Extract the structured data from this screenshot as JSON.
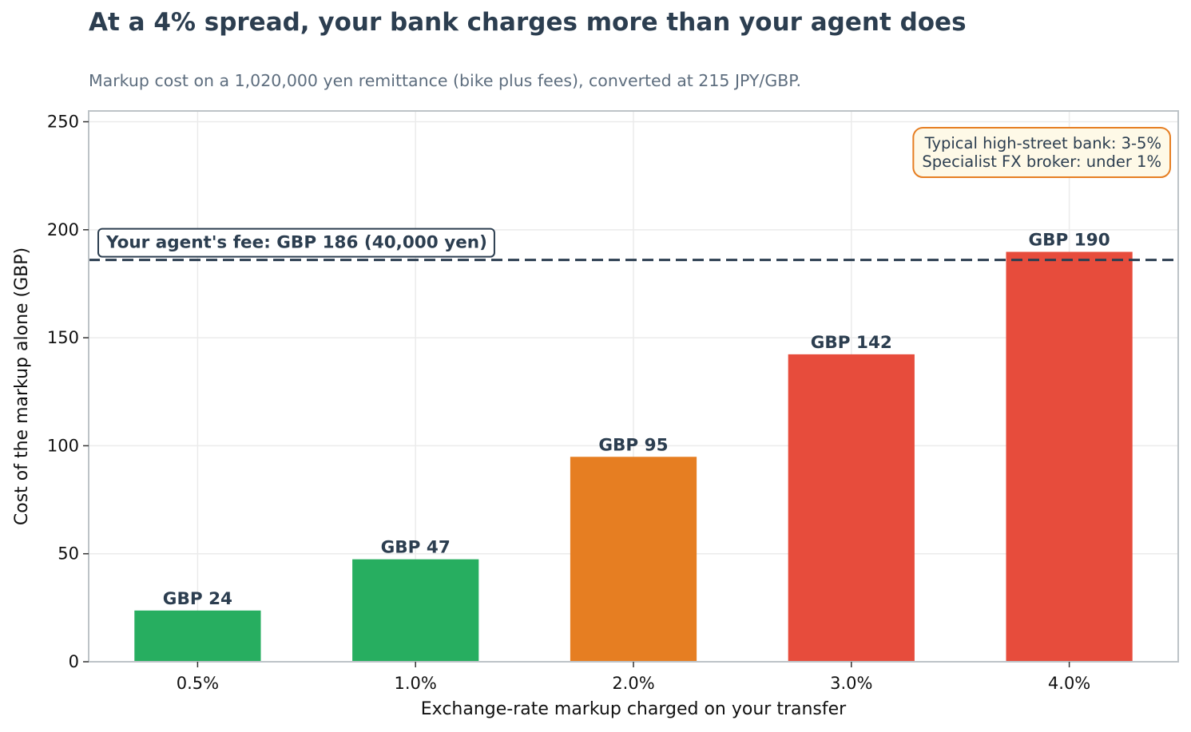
{
  "title": "At a 4% spread, your bank charges more than your agent does",
  "subtitle": "Markup cost on a 1,020,000 yen remittance (bike plus fees), converted at 215 JPY/GBP.",
  "chart_data": {
    "type": "bar",
    "categories": [
      "0.5%",
      "1.0%",
      "2.0%",
      "3.0%",
      "4.0%"
    ],
    "values": [
      23.72,
      47.44,
      94.88,
      142.33,
      189.77
    ],
    "value_labels": [
      "GBP 24",
      "GBP 47",
      "GBP 95",
      "GBP 142",
      "GBP 190"
    ],
    "bar_colors": [
      "#27ae60",
      "#27ae60",
      "#e67e22",
      "#e74c3c",
      "#e74c3c"
    ],
    "xlabel": "Exchange-rate markup charged on your transfer",
    "ylabel": "Cost of the markup alone (GBP)",
    "ylim": [
      0,
      255
    ],
    "yticks": [
      0,
      50,
      100,
      150,
      200,
      250
    ],
    "grid": true,
    "reference_line": {
      "value": 186.05,
      "label": "Your agent's fee: GBP 186  (40,000 yen)",
      "color": "#2c3e50",
      "style": "dashed"
    },
    "annotation": {
      "lines": [
        "Typical high-street bank: 3-5%",
        "Specialist FX broker: under 1%"
      ],
      "placement": "top-right",
      "border_color": "#e67e22",
      "fill_color": "#fef9e7"
    }
  }
}
